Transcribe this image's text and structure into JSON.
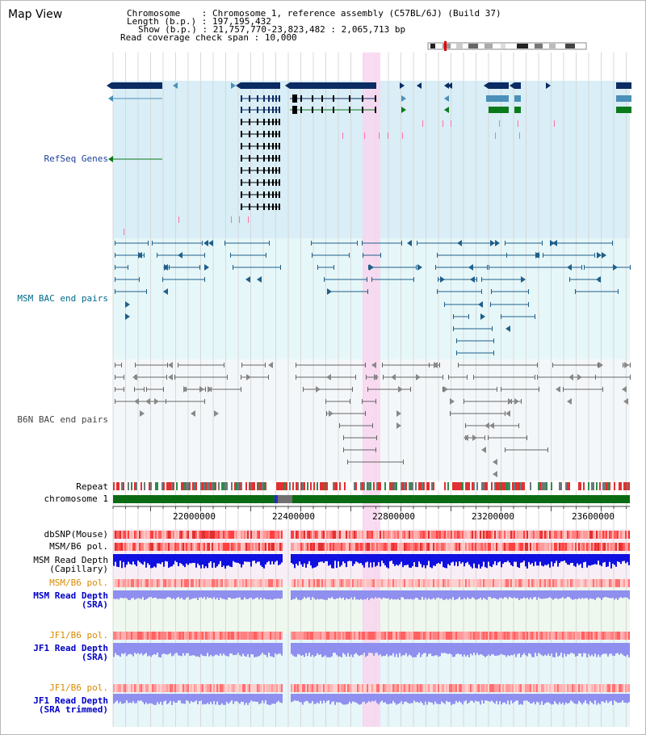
{
  "view_title": "Map View",
  "header": {
    "chromosome_label": "Chromosome",
    "chromosome_value": "Chromosome 1, reference assembly (C57BL/6J) (Build 37)",
    "length_label": "Length (b.p.)",
    "length_value": "197,195,432",
    "show_label": "Show (b.p.)",
    "show_value": "21,757,770-23,823,482 : 2,065,713 bp",
    "coverage_label": "Read coverage check span",
    "coverage_value": "10,000"
  },
  "tracks": {
    "refseq": "RefSeq Genes",
    "msm_bac": "MSM BAC end pairs",
    "b6n_bac": "B6N BAC end pairs",
    "repeat": "Repeat",
    "chromosome": "chromosome 1",
    "dbsnp": "dbSNP(Mouse)",
    "msm_b6_pol_1": "MSM/B6 pol.",
    "msm_depth_cap_1": "MSM Read Depth",
    "msm_depth_cap_2": "(Capillary)",
    "msm_b6_pol_2": "MSM/B6 pol.",
    "msm_depth_sra_1": "MSM Read Depth",
    "msm_depth_sra_2": "(SRA)",
    "jf1_b6_pol_1": "JF1/B6 pol.",
    "jf1_depth_sra_1": "JF1 Read Depth",
    "jf1_depth_sra_2": "(SRA)",
    "jf1_b6_pol_2": "JF1/B6 pol.",
    "jf1_depth_trim_1": "JF1 Read Depth",
    "jf1_depth_trim_2": "(SRA trimmed)"
  },
  "axis_ticks": [
    "22000000",
    "22400000",
    "22800000",
    "23200000",
    "23600000"
  ],
  "colors": {
    "refseq_bg": "#d9eef6",
    "bac_bg": "#e6f7f9",
    "highlight": "#f8d6ef",
    "gene_dark": "#0b2b63",
    "gene_mid": "#4a90b8",
    "gene_green": "#0a7a1c",
    "chromosome_bar": "#0b6b12",
    "msm_line": "#1f5f8a",
    "b6n_line": "#666666",
    "depth_blue": "#1010e0",
    "depth_light": "#8f8ff0"
  }
}
